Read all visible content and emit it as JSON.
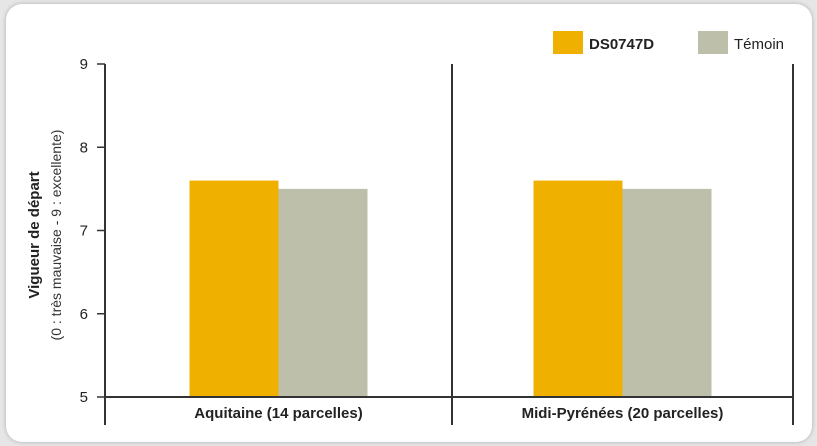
{
  "chart_data": {
    "type": "bar",
    "categories": [
      "Aquitaine (14 parcelles)",
      "Midi-Pyrénées (20 parcelles)"
    ],
    "series": [
      {
        "name": "DS0747D",
        "values": [
          7.6,
          7.6
        ],
        "color": "#f0b000"
      },
      {
        "name": "Témoin",
        "values": [
          7.5,
          7.5
        ],
        "color": "#bebfab"
      }
    ],
    "ylabel": "Vigueur de départ",
    "ylabel_sub": "(0 : très mauvaise - 9 : excellente)",
    "ylim": [
      5,
      9
    ],
    "yticks": [
      5,
      6,
      7,
      8,
      9
    ],
    "grid": false,
    "legend_position": "top-right"
  }
}
